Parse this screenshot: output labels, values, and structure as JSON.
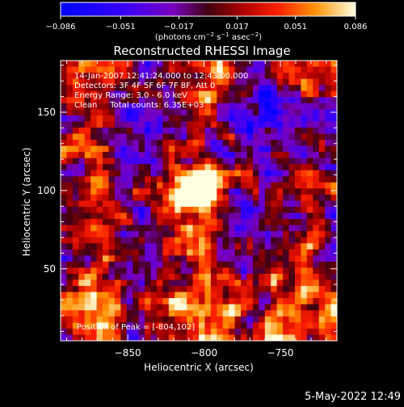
{
  "chart_data": {
    "type": "heatmap",
    "title": "Reconstructed RHESSI Image",
    "xlabel": "Heliocentric X (arcsec)",
    "ylabel": "Heliocentric Y (arcsec)",
    "xlim": [
      -894,
      -713
    ],
    "ylim": [
      4,
      183
    ],
    "xticks": [
      -850,
      -800,
      -750
    ],
    "xtick_labels": [
      "−850",
      "−800",
      "−750"
    ],
    "yticks": [
      50,
      100,
      150
    ],
    "ytick_labels": [
      "50",
      "100",
      "150"
    ],
    "colorbar": {
      "range": [
        -0.086,
        0.086
      ],
      "ticks": [
        -0.086,
        -0.051,
        -0.017,
        0.017,
        0.051,
        0.086
      ],
      "tick_labels": [
        "−0.086",
        "−0.051",
        "−0.017",
        "0.017",
        "0.051",
        "0.086"
      ],
      "units_text": "(photons cm",
      "units_exp1": "−2",
      "units_mid": " s",
      "units_exp2": "−1",
      "units_mid2": " asec",
      "units_exp3": "−2",
      "units_end": ")"
    },
    "annotations": [
      "14-Jan-2007 12:41:24.000 to 12:43:00.000",
      "Detectors: 3F 4F 5F 6F 7F 8F, Att 0",
      "Energy Range: 3.0 - 6.0 keV",
      "Clean     Total counts: 6.35E+03"
    ],
    "peak_label": "Position of Peak = [-804,102]",
    "peak": {
      "x": -804,
      "y": 102,
      "value": 0.086
    },
    "grid": false
  },
  "footer_date": "5-May-2022 12:49"
}
